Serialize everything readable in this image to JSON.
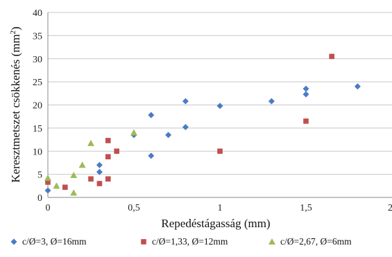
{
  "chart_data": {
    "type": "scatter",
    "xlabel": "Repedéstágasság (mm)",
    "ylabel_main": "Keresztmetszet csökkenés (mm",
    "ylabel_sup": "2",
    "ylabel_close": ")",
    "xlim": [
      0,
      2
    ],
    "ylim": [
      0,
      40
    ],
    "xticks": [
      {
        "value": 0,
        "label": "0"
      },
      {
        "value": 0.5,
        "label": "0,5"
      },
      {
        "value": 1,
        "label": "1"
      },
      {
        "value": 1.5,
        "label": "1,5"
      },
      {
        "value": 2,
        "label": "2"
      }
    ],
    "yticks": [
      {
        "value": 0,
        "label": "0"
      },
      {
        "value": 5,
        "label": "5"
      },
      {
        "value": 10,
        "label": "10"
      },
      {
        "value": 15,
        "label": "15"
      },
      {
        "value": 20,
        "label": "20"
      },
      {
        "value": 25,
        "label": "25"
      },
      {
        "value": 30,
        "label": "30"
      },
      {
        "value": 35,
        "label": "35"
      },
      {
        "value": 40,
        "label": "40"
      }
    ],
    "grid": "horizontal",
    "legend_position": "bottom",
    "series": [
      {
        "name": "c/Ø=3, Ø=16mm",
        "marker": "diamond",
        "color": "#4a7cc4",
        "points": [
          [
            0,
            1.5
          ],
          [
            0.3,
            5.5
          ],
          [
            0.3,
            7
          ],
          [
            0.5,
            13.5
          ],
          [
            0.6,
            9
          ],
          [
            0.6,
            17.8
          ],
          [
            0.7,
            13.5
          ],
          [
            0.8,
            15.2
          ],
          [
            0.8,
            20.8
          ],
          [
            1.0,
            19.8
          ],
          [
            1.3,
            20.8
          ],
          [
            1.5,
            22.3
          ],
          [
            1.5,
            23.5
          ],
          [
            1.8,
            24
          ]
        ]
      },
      {
        "name": "c/Ø=1,33, Ø=12mm",
        "marker": "square",
        "color": "#c0504d",
        "points": [
          [
            0,
            3.3
          ],
          [
            0.1,
            2.2
          ],
          [
            0.25,
            4
          ],
          [
            0.3,
            3
          ],
          [
            0.35,
            4
          ],
          [
            0.35,
            8.8
          ],
          [
            0.35,
            12.3
          ],
          [
            0.4,
            10
          ],
          [
            1.0,
            10
          ],
          [
            1.5,
            16.5
          ],
          [
            1.65,
            30.5
          ]
        ]
      },
      {
        "name": "c/Ø=2,67, Ø=6mm",
        "marker": "triangle",
        "color": "#9bbb59",
        "points": [
          [
            0,
            4.2
          ],
          [
            0.05,
            2.5
          ],
          [
            0.15,
            1
          ],
          [
            0.15,
            4.8
          ],
          [
            0.2,
            7
          ],
          [
            0.25,
            11.7
          ],
          [
            0.5,
            14
          ]
        ]
      }
    ]
  }
}
